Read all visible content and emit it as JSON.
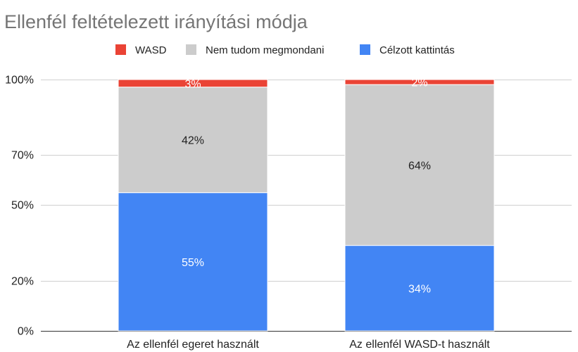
{
  "chart_data": {
    "type": "bar",
    "stacked": true,
    "title": "Ellenfél feltételezett irányítási módja",
    "xlabel": "",
    "ylabel": "",
    "ylim": [
      0,
      104.2
    ],
    "yticks": [
      0,
      20,
      50,
      70,
      100
    ],
    "ytick_labels": [
      "0%",
      "20%",
      "50%",
      "70%",
      "100%"
    ],
    "grid": true,
    "legend_position": "top",
    "categories": [
      "Az ellenfél egeret használt",
      "Az ellenfél WASD-t használt"
    ],
    "series": [
      {
        "name": "WASD",
        "color": "#ea4335",
        "label_color": "#ffffff",
        "values": [
          3,
          2
        ],
        "labels": [
          "3%",
          "2%"
        ]
      },
      {
        "name": "Nem tudom megmondani",
        "color": "#cccccc",
        "label_color": "#222222",
        "values": [
          42,
          64
        ],
        "labels": [
          "42%",
          "64%"
        ]
      },
      {
        "name": "Célzott kattintás",
        "color": "#4285f4",
        "label_color": "#ffffff",
        "values": [
          55,
          34
        ],
        "labels": [
          "55%",
          "34%"
        ]
      }
    ]
  }
}
